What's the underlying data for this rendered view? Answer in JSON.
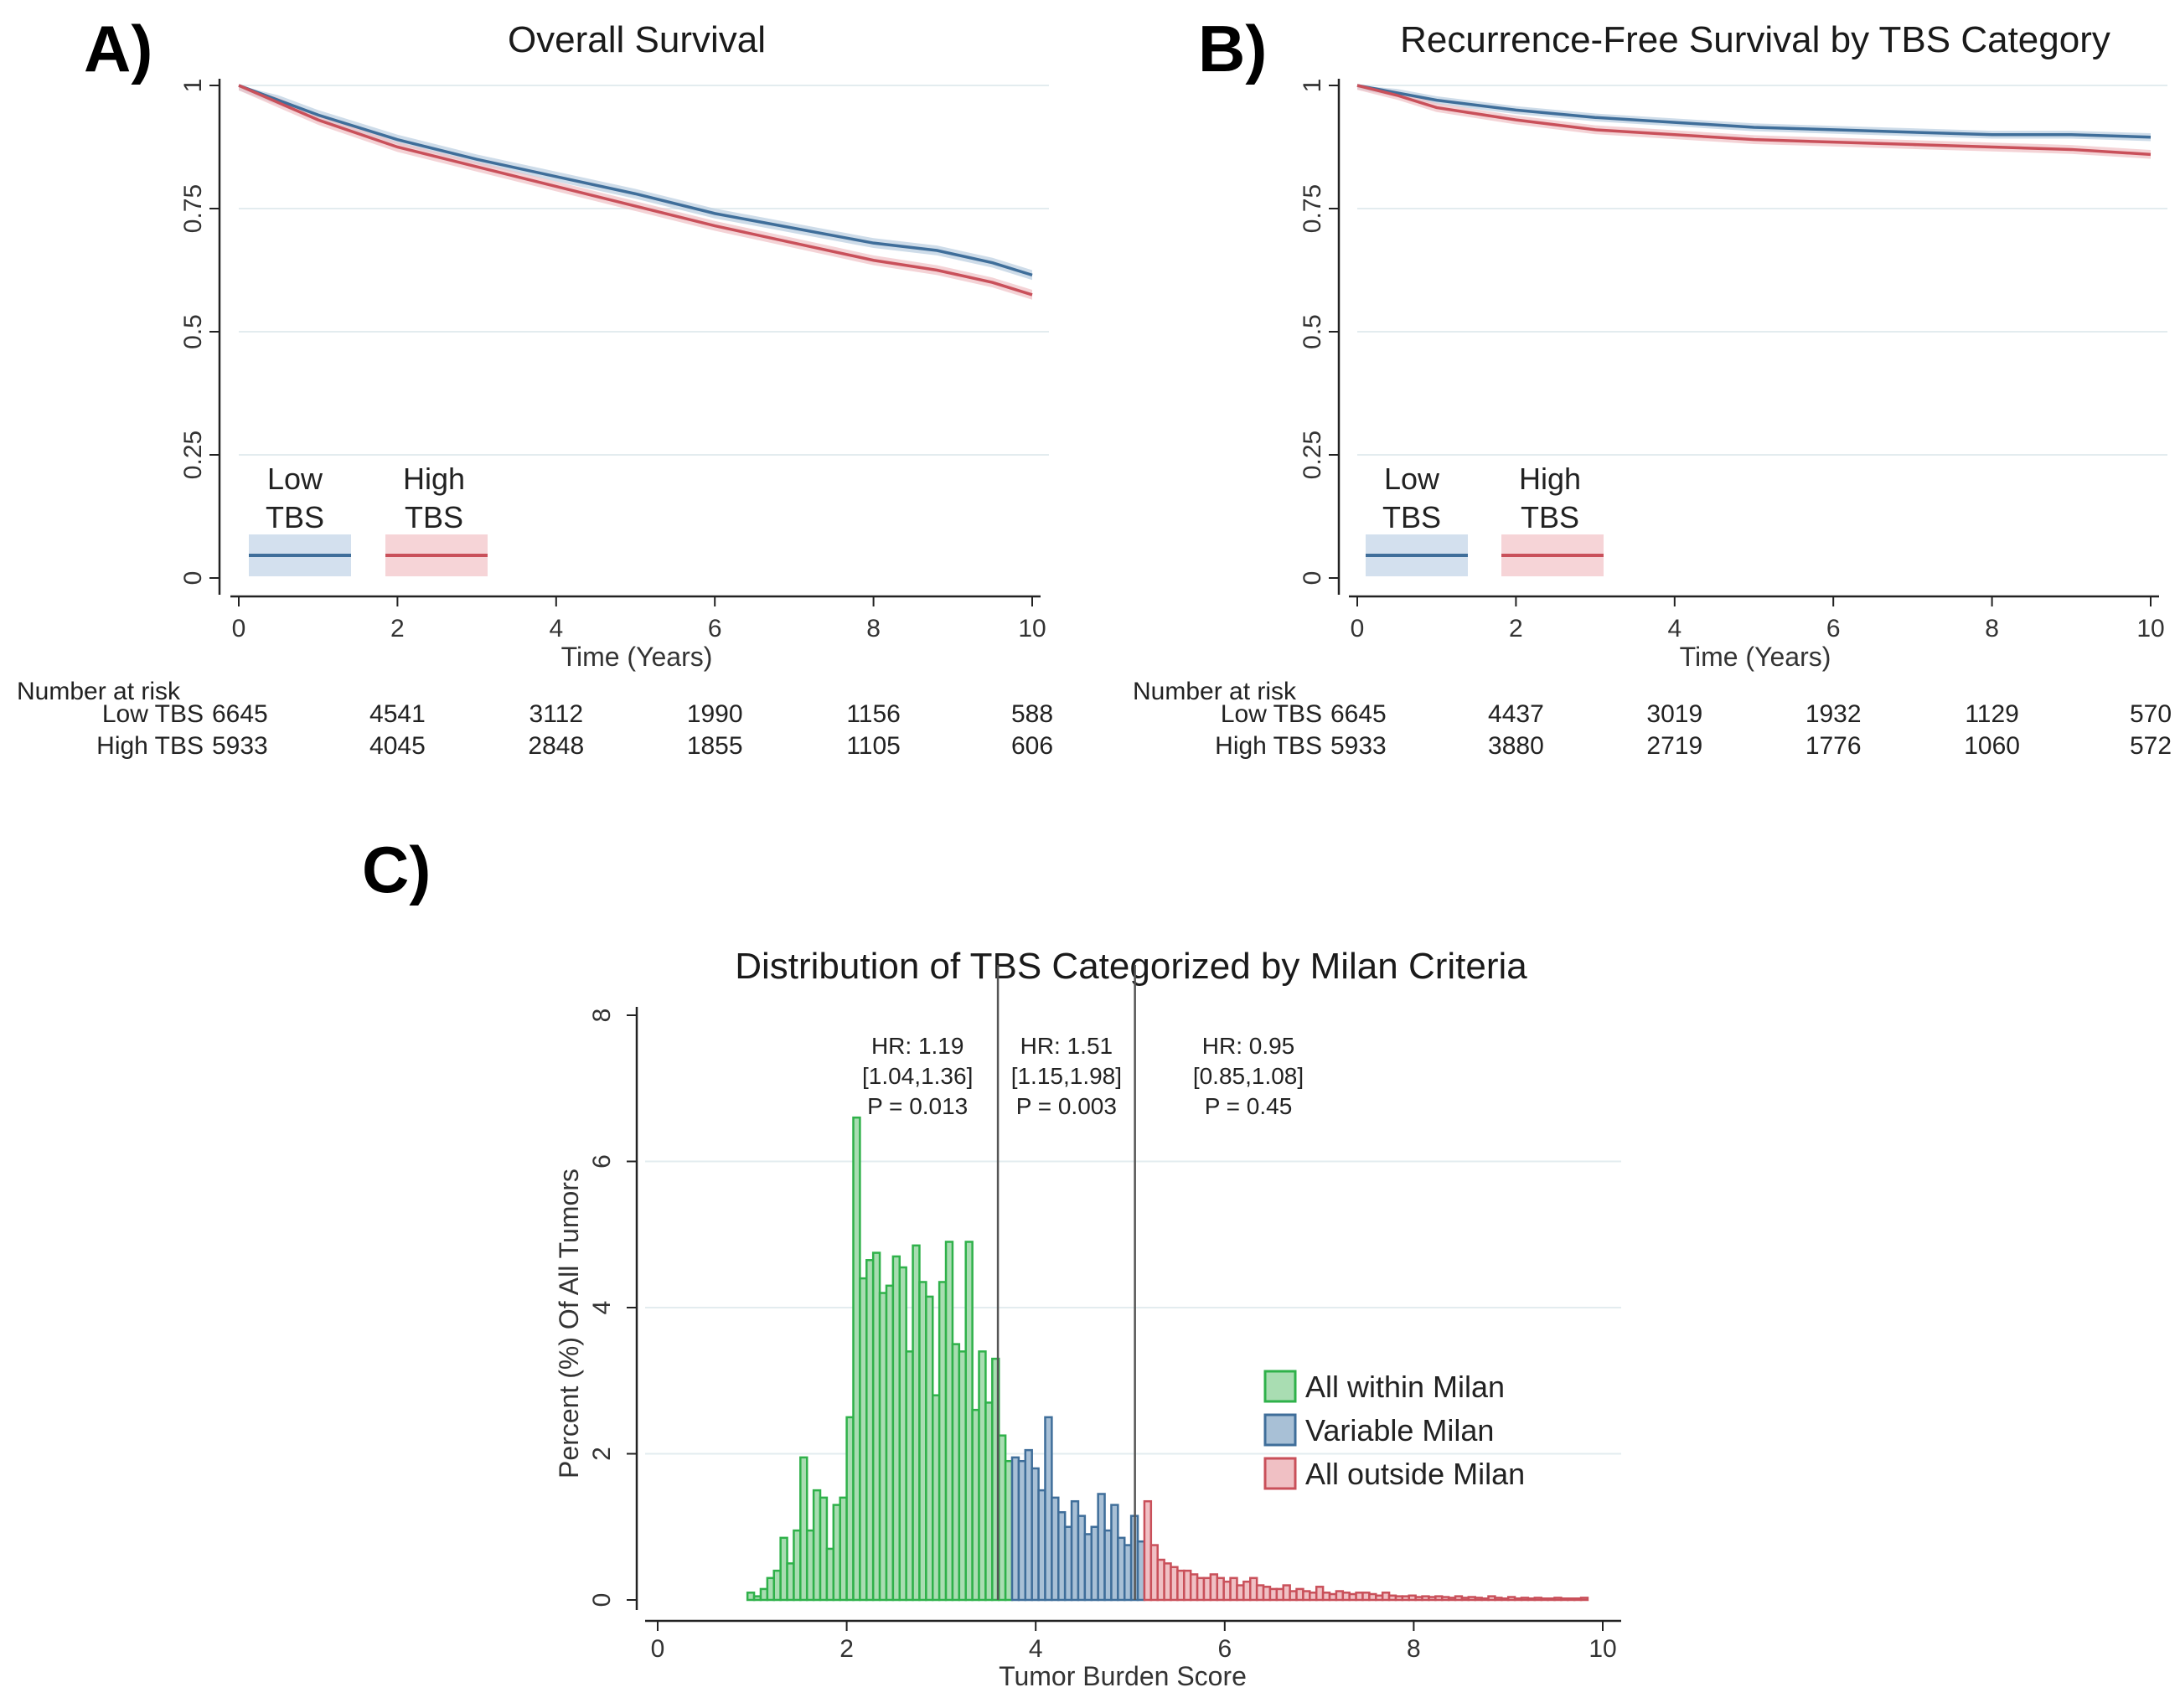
{
  "figure": {
    "panel_a_label": "A)",
    "panel_b_label": "B)",
    "panel_c_label": "C)"
  },
  "chart_data": [
    {
      "type": "line",
      "panel": "A",
      "title": "Overall Survival",
      "xlabel": "Time (Years)",
      "ylabel": "",
      "xlim": [
        0,
        10
      ],
      "ylim": [
        0,
        1
      ],
      "x_ticks": [
        "0",
        "2",
        "4",
        "6",
        "8",
        "10"
      ],
      "y_ticks": [
        "0",
        "0.25",
        "0.5",
        "0.75",
        "1"
      ],
      "series": [
        {
          "name": "Low TBS",
          "color": "#3f6e9a",
          "band_color": "#b9cde0",
          "x": [
            0,
            0.5,
            1,
            2,
            3,
            4,
            5,
            6,
            7,
            8,
            8.8,
            9.5,
            10
          ],
          "y": [
            1,
            0.97,
            0.94,
            0.89,
            0.85,
            0.815,
            0.78,
            0.74,
            0.71,
            0.68,
            0.665,
            0.64,
            0.615
          ],
          "ci_halfwidth": 0.01
        },
        {
          "name": "High TBS",
          "color": "#c9505a",
          "band_color": "#f0c0c4",
          "x": [
            0,
            0.5,
            1,
            2,
            3,
            4,
            5,
            6,
            7,
            8,
            8.8,
            9.5,
            10
          ],
          "y": [
            1,
            0.965,
            0.93,
            0.875,
            0.835,
            0.795,
            0.755,
            0.715,
            0.68,
            0.645,
            0.625,
            0.6,
            0.575
          ],
          "ci_halfwidth": 0.01
        }
      ],
      "legend": [
        {
          "line1": "Low",
          "line2": "TBS"
        },
        {
          "line1": "High",
          "line2": "TBS"
        }
      ],
      "risk_table": {
        "title": "Number at risk",
        "rows": [
          {
            "label": "Low TBS",
            "values": [
              "6645",
              "4541",
              "3112",
              "1990",
              "1156",
              "588"
            ]
          },
          {
            "label": "High TBS",
            "values": [
              "5933",
              "4045",
              "2848",
              "1855",
              "1105",
              "606"
            ]
          }
        ]
      }
    },
    {
      "type": "line",
      "panel": "B",
      "title": "Recurrence-Free Survival by TBS Category",
      "xlabel": "Time (Years)",
      "ylabel": "",
      "xlim": [
        0,
        10
      ],
      "ylim": [
        0,
        1
      ],
      "x_ticks": [
        "0",
        "2",
        "4",
        "6",
        "8",
        "10"
      ],
      "y_ticks": [
        "0",
        "0.25",
        "0.5",
        "0.75",
        "1"
      ],
      "series": [
        {
          "name": "Low TBS",
          "color": "#3f6e9a",
          "band_color": "#b9cde0",
          "x": [
            0,
            0.5,
            1,
            2,
            3,
            4,
            5,
            6,
            7,
            8,
            9,
            10
          ],
          "y": [
            1,
            0.985,
            0.97,
            0.95,
            0.935,
            0.925,
            0.915,
            0.91,
            0.905,
            0.9,
            0.9,
            0.895
          ],
          "ci_halfwidth": 0.008
        },
        {
          "name": "High TBS",
          "color": "#c9505a",
          "band_color": "#f0c0c4",
          "x": [
            0,
            0.5,
            1,
            2,
            3,
            4,
            5,
            6,
            7,
            8,
            9,
            10
          ],
          "y": [
            1,
            0.98,
            0.955,
            0.93,
            0.91,
            0.9,
            0.89,
            0.885,
            0.88,
            0.875,
            0.87,
            0.86
          ],
          "ci_halfwidth": 0.009
        }
      ],
      "legend": [
        {
          "line1": "Low",
          "line2": "TBS"
        },
        {
          "line1": "High",
          "line2": "TBS"
        }
      ],
      "risk_table": {
        "title": "Number at risk",
        "rows": [
          {
            "label": "Low TBS",
            "values": [
              "6645",
              "4437",
              "3019",
              "1932",
              "1129",
              "570"
            ]
          },
          {
            "label": "High TBS",
            "values": [
              "5933",
              "3880",
              "2719",
              "1776",
              "1060",
              "572"
            ]
          }
        ]
      }
    },
    {
      "type": "bar",
      "panel": "C",
      "title": "Distribution of TBS Categorized by Milan Criteria",
      "xlabel": "Tumor Burden Score",
      "ylabel": "Percent (%) Of All Tumors",
      "xlim": [
        0,
        10
      ],
      "ylim": [
        0,
        8
      ],
      "x_ticks": [
        "0",
        "2",
        "4",
        "6",
        "8",
        "10"
      ],
      "y_ticks": [
        "0",
        "2",
        "4",
        "6",
        "8"
      ],
      "bin_start": 0.95,
      "bin_width": 0.07,
      "series": [
        {
          "name": "All within Milan",
          "color": "#2fb14a",
          "fill": "#a9ddb2",
          "values": [
            0.1,
            0.05,
            0.15,
            0.3,
            0.4,
            0.85,
            0.5,
            0.95,
            1.95,
            0.95,
            1.5,
            1.4,
            0.7,
            1.3,
            1.4,
            2.5,
            6.6,
            4.4,
            4.65,
            4.75,
            4.2,
            4.3,
            4.7,
            4.55,
            3.4,
            4.85,
            4.35,
            4.15,
            2.8,
            4.35,
            4.9,
            3.5,
            3.4,
            4.9,
            2.6,
            3.4,
            2.7,
            3.3,
            2.25,
            1.9
          ]
        },
        {
          "name": "Variable Milan",
          "color": "#3f6e9a",
          "fill": "#a8c0d6",
          "values": [
            1.95,
            1.9,
            2.05,
            1.8,
            1.5,
            2.5,
            1.4,
            1.2,
            1.0,
            1.35,
            1.15,
            0.9,
            1.0,
            1.45,
            0.95,
            1.3,
            0.85,
            0.75,
            1.15,
            0.8
          ]
        },
        {
          "name": "All outside Milan",
          "color": "#c9505a",
          "fill": "#f0c0c4",
          "values": [
            1.35,
            0.75,
            0.55,
            0.5,
            0.45,
            0.4,
            0.4,
            0.35,
            0.3,
            0.3,
            0.35,
            0.3,
            0.25,
            0.3,
            0.2,
            0.25,
            0.3,
            0.2,
            0.18,
            0.15,
            0.15,
            0.2,
            0.12,
            0.15,
            0.12,
            0.1,
            0.18,
            0.1,
            0.08,
            0.12,
            0.1,
            0.08,
            0.1,
            0.1,
            0.08,
            0.06,
            0.1,
            0.06,
            0.05,
            0.05,
            0.06,
            0.04,
            0.05,
            0.04,
            0.05,
            0.04,
            0.03,
            0.05,
            0.03,
            0.04,
            0.03,
            0.02,
            0.05,
            0.03,
            0.02,
            0.04,
            0.02,
            0.03,
            0.02,
            0.03,
            0.02,
            0.02,
            0.03,
            0.02,
            0.02,
            0.02,
            0.03
          ]
        }
      ],
      "cutoffs": [
        3.6,
        5.05
      ],
      "annotations": [
        {
          "lines": [
            "HR: 1.19",
            "[1.04,1.36]",
            "P = 0.013"
          ]
        },
        {
          "lines": [
            "HR: 1.51",
            "[1.15,1.98]",
            "P = 0.003"
          ]
        },
        {
          "lines": [
            "HR: 0.95",
            "[0.85,1.08]",
            "P = 0.45"
          ]
        }
      ]
    }
  ]
}
